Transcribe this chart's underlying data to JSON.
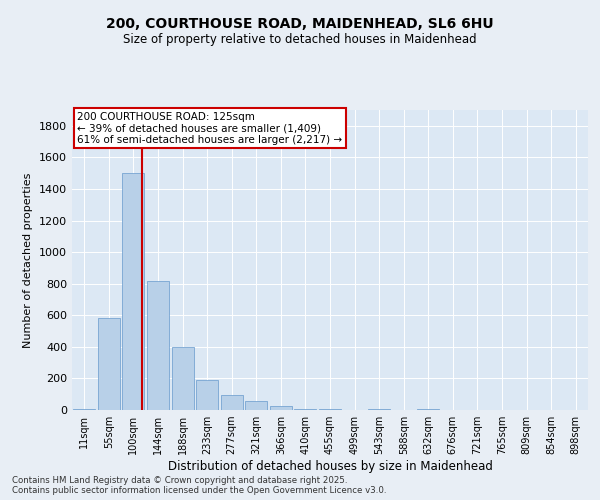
{
  "title1": "200, COURTHOUSE ROAD, MAIDENHEAD, SL6 6HU",
  "title2": "Size of property relative to detached houses in Maidenhead",
  "xlabel": "Distribution of detached houses by size in Maidenhead",
  "ylabel": "Number of detached properties",
  "categories": [
    "11sqm",
    "55sqm",
    "100sqm",
    "144sqm",
    "188sqm",
    "233sqm",
    "277sqm",
    "321sqm",
    "366sqm",
    "410sqm",
    "455sqm",
    "499sqm",
    "543sqm",
    "588sqm",
    "632sqm",
    "676sqm",
    "721sqm",
    "765sqm",
    "809sqm",
    "854sqm",
    "898sqm"
  ],
  "values": [
    8,
    580,
    1500,
    820,
    400,
    190,
    95,
    55,
    28,
    5,
    8,
    2,
    5,
    0,
    5,
    0,
    0,
    0,
    0,
    0,
    0
  ],
  "bar_color": "#b8d0e8",
  "bar_edge_color": "#6699cc",
  "ylim": [
    0,
    1900
  ],
  "yticks": [
    0,
    200,
    400,
    600,
    800,
    1000,
    1200,
    1400,
    1600,
    1800
  ],
  "vline_color": "#cc0000",
  "vline_pos": 2.35,
  "annotation_text": "200 COURTHOUSE ROAD: 125sqm\n← 39% of detached houses are smaller (1,409)\n61% of semi-detached houses are larger (2,217) →",
  "annotation_box_color": "#ffffff",
  "annotation_box_edge": "#cc0000",
  "footer1": "Contains HM Land Registry data © Crown copyright and database right 2025.",
  "footer2": "Contains public sector information licensed under the Open Government Licence v3.0.",
  "bg_color": "#e8eef5",
  "plot_bg_color": "#dce8f4",
  "grid_color": "#ffffff"
}
